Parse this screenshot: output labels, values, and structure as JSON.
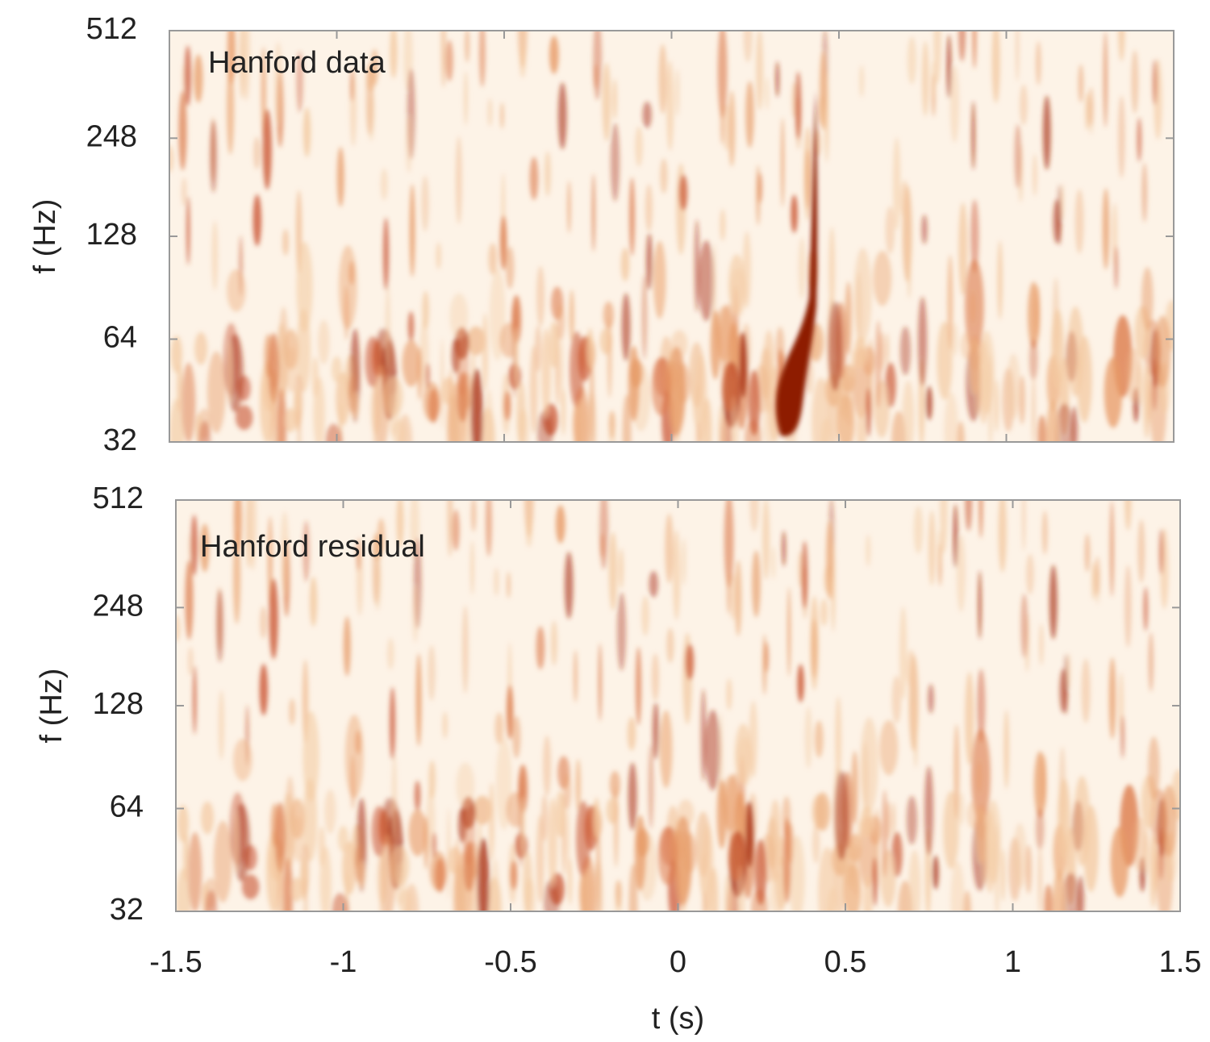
{
  "chart_data": [
    {
      "type": "spectrogram",
      "title": "Hanford data",
      "ylabel": "f (Hz)",
      "log_y": true,
      "xlim": [
        -1.5,
        1.5
      ],
      "xticks": [
        -1.5,
        -1,
        -0.5,
        0,
        0.5,
        1,
        1.5
      ],
      "ylim": [
        32,
        512
      ],
      "yticks": [
        32,
        64,
        128,
        248,
        512
      ]
    },
    {
      "type": "spectrogram",
      "title": "Hanford residual",
      "ylabel": "f (Hz)",
      "xlabel": "t (s)",
      "log_y": true,
      "xlim": [
        -1.5,
        1.5
      ],
      "xticks": [
        -1.5,
        -1,
        -0.5,
        0,
        0.5,
        1,
        1.5
      ],
      "ylim": [
        32,
        512
      ],
      "yticks": [
        32,
        64,
        128,
        248,
        512
      ]
    }
  ]
}
